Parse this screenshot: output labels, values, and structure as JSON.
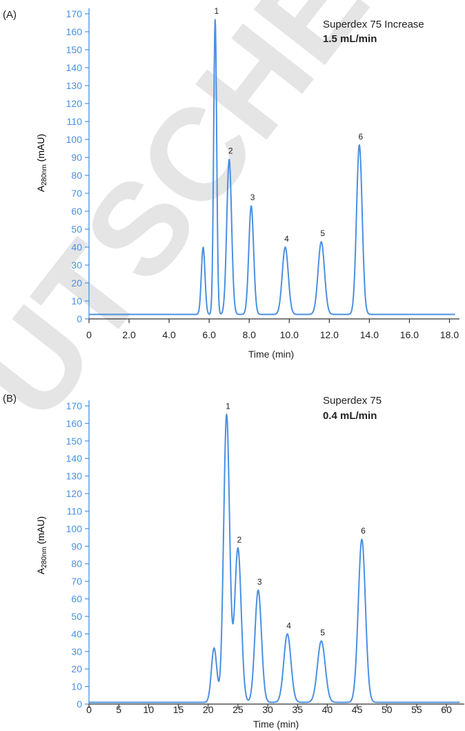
{
  "watermark": "UTSCHER",
  "colors": {
    "trace": "#4a90e2",
    "axis": "#4a90e2",
    "text": "#222222",
    "watermark": "#e5e5e5"
  },
  "chart_data": [
    {
      "type": "line",
      "panel_label": "(A)",
      "column": "Superdex 75 Increase",
      "flow_rate": "1.5 mL/min",
      "xlabel": "Time (min)",
      "ylabel_main": "A",
      "ylabel_sub": "280nm",
      "ylabel_unit": " (mAU)",
      "xlim": [
        0,
        18.5
      ],
      "ylim": [
        0,
        170
      ],
      "xticks": [
        0,
        2,
        4,
        6,
        8,
        10,
        12,
        14,
        16,
        18
      ],
      "xtick_labels": [
        "0",
        "2.0",
        "4.0",
        "6.0",
        "8.0",
        "10.0",
        "12.0",
        "14.0",
        "16.0",
        "18.0"
      ],
      "yticks": [
        0,
        10,
        20,
        30,
        40,
        50,
        60,
        70,
        80,
        90,
        100,
        110,
        120,
        130,
        140,
        150,
        160,
        170
      ],
      "ytick_labels": [
        "0",
        "10",
        "20",
        "30",
        "40",
        "50",
        "60",
        "70",
        "80",
        "90",
        "100",
        "110",
        "120",
        "130",
        "140",
        "150",
        "160",
        "170"
      ],
      "baseline": 2.5,
      "peaks": [
        {
          "label": "",
          "x": 5.7,
          "y": 40,
          "w": 0.09
        },
        {
          "label": "1",
          "x": 6.3,
          "y": 167,
          "w": 0.075
        },
        {
          "label": "2",
          "x": 7.0,
          "y": 89,
          "w": 0.12
        },
        {
          "label": "3",
          "x": 8.1,
          "y": 63,
          "w": 0.12
        },
        {
          "label": "4",
          "x": 9.8,
          "y": 40,
          "w": 0.15
        },
        {
          "label": "5",
          "x": 11.6,
          "y": 43,
          "w": 0.16
        },
        {
          "label": "6",
          "x": 13.5,
          "y": 97,
          "w": 0.14
        }
      ]
    },
    {
      "type": "line",
      "panel_label": "(B)",
      "column": "Superdex 75",
      "flow_rate": "0.4 mL/min",
      "xlabel": "Time (min)",
      "ylabel_main": "A",
      "ylabel_sub": "280nm",
      "ylabel_unit": " (mAU)",
      "xlim": [
        0,
        63
      ],
      "ylim": [
        0,
        170
      ],
      "xticks": [
        0,
        5,
        10,
        15,
        20,
        25,
        30,
        35,
        40,
        45,
        50,
        55,
        60
      ],
      "xtick_labels": [
        "0",
        "5",
        "10",
        "15",
        "20",
        "25",
        "30",
        "35",
        "40",
        "45",
        "50",
        "55",
        "60"
      ],
      "yticks": [
        0,
        10,
        20,
        30,
        40,
        50,
        60,
        70,
        80,
        90,
        100,
        110,
        120,
        130,
        140,
        150,
        160,
        170
      ],
      "ytick_labels": [
        "0",
        "10",
        "20",
        "30",
        "40",
        "50",
        "60",
        "70",
        "80",
        "90",
        "100",
        "110",
        "120",
        "130",
        "140",
        "150",
        "160",
        "170"
      ],
      "baseline": 1,
      "peaks": [
        {
          "label": "",
          "x": 21.0,
          "y": 32,
          "w": 0.45
        },
        {
          "label": "1",
          "x": 23.1,
          "y": 165,
          "w": 0.5
        },
        {
          "label": "2",
          "x": 25.0,
          "y": 89,
          "w": 0.55
        },
        {
          "label": "3",
          "x": 28.4,
          "y": 65,
          "w": 0.55
        },
        {
          "label": "4",
          "x": 33.3,
          "y": 40,
          "w": 0.6
        },
        {
          "label": "5",
          "x": 39.0,
          "y": 36,
          "w": 0.65
        },
        {
          "label": "6",
          "x": 45.8,
          "y": 94,
          "w": 0.6
        }
      ]
    }
  ]
}
